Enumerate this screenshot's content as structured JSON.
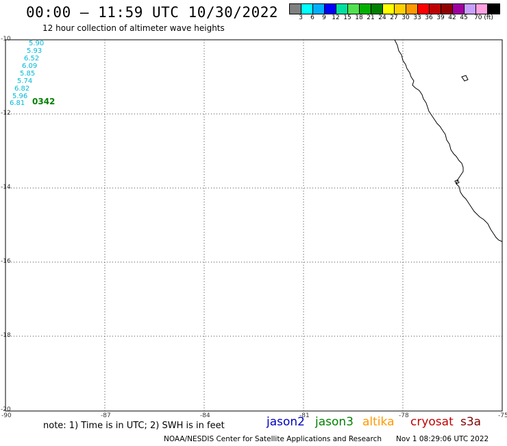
{
  "header": {
    "title": "00:00 – 11:59 UTC 10/30/2022",
    "subtitle": "12 hour collection of altimeter wave heights"
  },
  "color_scale": {
    "colors": [
      "#808080",
      "#00ffff",
      "#00b0ff",
      "#0000ff",
      "#00e0a0",
      "#50e050",
      "#00b000",
      "#008000",
      "#ffff00",
      "#ffd000",
      "#ff9900",
      "#ff0000",
      "#c00000",
      "#900000",
      "#a000a0",
      "#c8a0ff",
      "#ffa0e0",
      "#000000"
    ],
    "labels": [
      "3",
      "6",
      "9",
      "12",
      "15",
      "18",
      "21",
      "24",
      "27",
      "30",
      "33",
      "36",
      "39",
      "42",
      "45",
      "70 (ft)"
    ]
  },
  "axes": {
    "lat_labels": [
      "-10",
      "-12",
      "-14",
      "-16",
      "-18",
      "-20"
    ],
    "lon_labels": [
      "-90",
      "-87",
      "-84",
      "-81",
      "-78",
      "-75"
    ]
  },
  "track": {
    "color": "#00b8d8",
    "values": [
      "5.90",
      "5.93",
      "6.52",
      "6.09",
      "5.85",
      "5.74",
      "6.82",
      "5.96",
      "6.81"
    ],
    "time_label": "0342",
    "time_color": "#008000"
  },
  "footer": {
    "note": "note: 1) Time is in UTC; 2) SWH is in feet",
    "satellites": [
      {
        "name": "jason2",
        "color": "#0000c0"
      },
      {
        "name": "jason3",
        "color": "#008000"
      },
      {
        "name": "altika",
        "color": "#ff9900"
      },
      {
        "name": "cryosat",
        "color": "#c00000"
      },
      {
        "name": "s3a",
        "color": "#800000"
      }
    ],
    "credit": "NOAA/NESDIS Center for Satellite Applications and Research",
    "timestamp": "Nov  1 08:29:06 UTC 2022"
  }
}
